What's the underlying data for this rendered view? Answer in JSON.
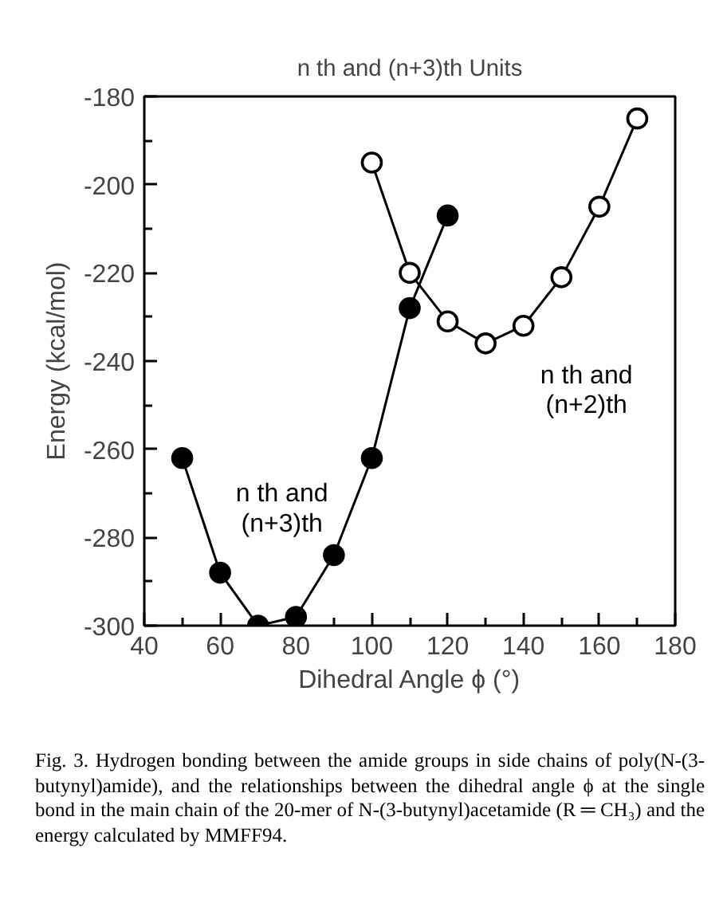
{
  "chart_data": {
    "type": "line",
    "title": "n th and (n+3)th Units",
    "xlabel": "Dihedral Angle ϕ (°)",
    "ylabel": "Energy (kcal/mol)",
    "x": [
      50,
      60,
      70,
      80,
      90,
      100,
      110,
      120
    ],
    "series": [
      {
        "name": "n th and\n(n+3)th",
        "color": "#000000",
        "marker": "circle",
        "values": [
          -262,
          -288,
          -300,
          -298,
          -284,
          -262,
          -228,
          -207
        ]
      },
      {
        "name": "n th and\n(n+2)th",
        "color": "#000000",
        "marker": "circle_open",
        "x": [
          100,
          110,
          120,
          130,
          140,
          150,
          160,
          170
        ],
        "values": [
          -195,
          -220,
          -231,
          -236,
          -232,
          -221,
          -205,
          -185
        ]
      }
    ],
    "xlim": [
      40,
      180
    ],
    "ylim": [
      -300,
      -180
    ],
    "xticks": [
      40,
      {
        "value": 50,
        "label": null
      },
      60,
      {
        "value": 70,
        "label": null
      },
      80,
      {
        "value": 90,
        "label": null
      },
      100,
      {
        "value": 110,
        "label": null
      },
      120,
      {
        "value": 130,
        "label": null
      },
      140,
      {
        "value": 150,
        "label": null
      },
      160,
      {
        "value": 170,
        "label": null
      },
      180
    ],
    "yticks": [
      -300,
      {
        "value": -290,
        "label": null
      },
      -280,
      {
        "value": -270,
        "label": null
      },
      -260,
      {
        "value": -250,
        "label": null
      },
      -240,
      {
        "value": -230,
        "label": null
      },
      -220,
      {
        "value": -210,
        "label": null
      },
      -200,
      {
        "value": -190,
        "label": null
      },
      -180
    ],
    "grid": false,
    "legend": false,
    "line_style": "solid",
    "annotations": [
      "Fig. 3. Hydrogen bonding between the amide groups in side chains of poly(N-(3-butynyl)amide), and the relationships between the dihedral angle ϕ at the single bond in the main chain of the 20-mer of N-(3-butynyl)acetamide (R ═ CH₃) and the energy calculated by MMFF94."
    ]
  }
}
